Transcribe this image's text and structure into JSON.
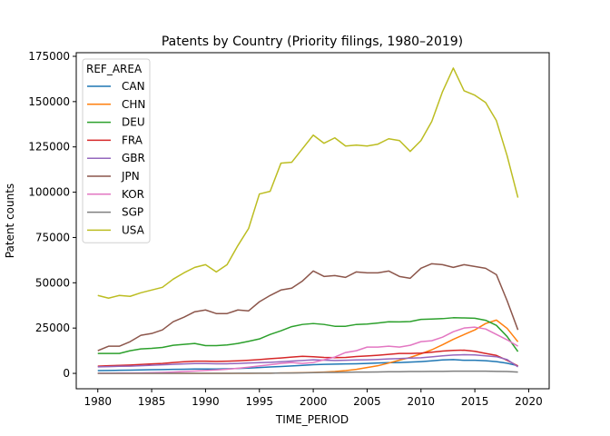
{
  "chart_data": {
    "type": "line",
    "title": "Patents by Country (Priority filings, 1980–2019)",
    "xlabel": "TIME_PERIOD",
    "ylabel": "Patent counts",
    "xlim": [
      1978,
      2021.9
    ],
    "ylim": [
      -8500,
      177000
    ],
    "xticks": [
      1980,
      1985,
      1990,
      1995,
      2000,
      2005,
      2010,
      2015,
      2020
    ],
    "yticks": [
      0,
      25000,
      50000,
      75000,
      100000,
      125000,
      150000,
      175000
    ],
    "ytick_labels": [
      "0",
      "25000",
      "50000",
      "75000",
      "100000",
      "125000",
      "150000",
      "175000"
    ],
    "grid": false,
    "legend": {
      "title": "REF_AREA",
      "placement": "top-left"
    },
    "x": [
      1980,
      1981,
      1982,
      1983,
      1984,
      1985,
      1986,
      1987,
      1988,
      1989,
      1990,
      1991,
      1992,
      1993,
      1994,
      1995,
      1996,
      1997,
      1998,
      1999,
      2000,
      2001,
      2002,
      2003,
      2004,
      2005,
      2006,
      2007,
      2008,
      2009,
      2010,
      2011,
      2012,
      2013,
      2014,
      2015,
      2016,
      2017,
      2018,
      2019
    ],
    "series": [
      {
        "name": "CAN",
        "color": "#1f77b4",
        "values": [
          1500,
          1600,
          1700,
          1800,
          1900,
          2000,
          2100,
          2200,
          2300,
          2400,
          2400,
          2400,
          2500,
          2700,
          2900,
          3200,
          3500,
          3800,
          4100,
          4400,
          4800,
          5000,
          5100,
          5200,
          5300,
          5500,
          5700,
          5900,
          6000,
          6200,
          6500,
          6900,
          7400,
          7600,
          7200,
          7200,
          7000,
          6500,
          5600,
          4200
        ]
      },
      {
        "name": "CHN",
        "color": "#ff7f0e",
        "values": [
          0,
          0,
          0,
          0,
          0,
          0,
          0,
          0,
          0,
          0,
          0,
          0,
          0,
          0,
          0,
          100,
          100,
          200,
          300,
          400,
          500,
          700,
          1000,
          1500,
          2200,
          3200,
          4200,
          5700,
          7300,
          8800,
          10800,
          13000,
          15800,
          18800,
          21400,
          24000,
          27500,
          29400,
          24800,
          17400
        ]
      },
      {
        "name": "DEU",
        "color": "#2ca02c",
        "values": [
          11000,
          11000,
          11000,
          12500,
          13500,
          13800,
          14300,
          15500,
          16000,
          16500,
          15300,
          15300,
          15700,
          16500,
          17700,
          19000,
          21500,
          23500,
          25800,
          27000,
          27500,
          27000,
          26000,
          26000,
          27000,
          27200,
          27800,
          28500,
          28400,
          28600,
          29800,
          30000,
          30200,
          30700,
          30600,
          30400,
          29300,
          26500,
          20300,
          12000
        ]
      },
      {
        "name": "FRA",
        "color": "#d62728",
        "values": [
          4000,
          4200,
          4400,
          4600,
          4900,
          5200,
          5500,
          6000,
          6400,
          6700,
          6700,
          6600,
          6700,
          6900,
          7200,
          7600,
          8100,
          8500,
          9000,
          9400,
          9200,
          8800,
          8700,
          8800,
          9300,
          9600,
          10000,
          10500,
          11000,
          11000,
          11200,
          11700,
          12300,
          12700,
          12800,
          12200,
          11000,
          9900,
          7200,
          4100
        ]
      },
      {
        "name": "GBR",
        "color": "#9467bd",
        "values": [
          3600,
          3700,
          3900,
          4000,
          4200,
          4500,
          4700,
          5000,
          5200,
          5400,
          5400,
          5300,
          5300,
          5500,
          5700,
          5900,
          6100,
          6400,
          6800,
          7100,
          7500,
          7300,
          7100,
          7200,
          7400,
          7500,
          7700,
          8000,
          8200,
          8400,
          8600,
          9100,
          9700,
          10100,
          10300,
          10200,
          9700,
          9200,
          7600,
          3600
        ]
      },
      {
        "name": "JPN",
        "color": "#8c564b",
        "values": [
          12500,
          15000,
          15000,
          17500,
          21000,
          22000,
          24000,
          28500,
          31000,
          34000,
          35000,
          33000,
          33000,
          35000,
          34500,
          39500,
          43000,
          46000,
          47000,
          51000,
          56500,
          53500,
          54000,
          53000,
          56000,
          55500,
          55500,
          56500,
          53500,
          52500,
          58000,
          60500,
          60000,
          58500,
          60000,
          59000,
          58000,
          54500,
          40000,
          24000
        ]
      },
      {
        "name": "KOR",
        "color": "#e377c2",
        "values": [
          100,
          100,
          200,
          200,
          300,
          400,
          500,
          700,
          1000,
          1300,
          1600,
          1900,
          2300,
          2800,
          3400,
          4100,
          4800,
          5500,
          6000,
          5500,
          6000,
          7500,
          9000,
          11500,
          12500,
          14500,
          14500,
          15000,
          14500,
          15500,
          17500,
          18000,
          20000,
          23000,
          25000,
          25500,
          24500,
          21500,
          18500,
          15000
        ]
      },
      {
        "name": "SGP",
        "color": "#7f7f7f",
        "values": [
          0,
          0,
          0,
          0,
          0,
          0,
          0,
          0,
          0,
          0,
          0,
          0,
          0,
          100,
          100,
          100,
          100,
          200,
          200,
          300,
          400,
          500,
          500,
          600,
          700,
          700,
          800,
          900,
          900,
          1000,
          1000,
          1100,
          1100,
          1200,
          1200,
          1200,
          1200,
          1100,
          1000,
          700
        ]
      },
      {
        "name": "USA",
        "color": "#bcbd22",
        "values": [
          43000,
          41500,
          43000,
          42500,
          44500,
          46000,
          47500,
          52000,
          55500,
          58500,
          60000,
          56000,
          60000,
          70500,
          80000,
          99000,
          100500,
          116000,
          116500,
          124000,
          131500,
          127000,
          130000,
          125500,
          126000,
          125500,
          126500,
          129500,
          128500,
          122500,
          128500,
          139000,
          155500,
          168500,
          156000,
          153500,
          149500,
          139500,
          120000,
          97000
        ]
      }
    ]
  }
}
